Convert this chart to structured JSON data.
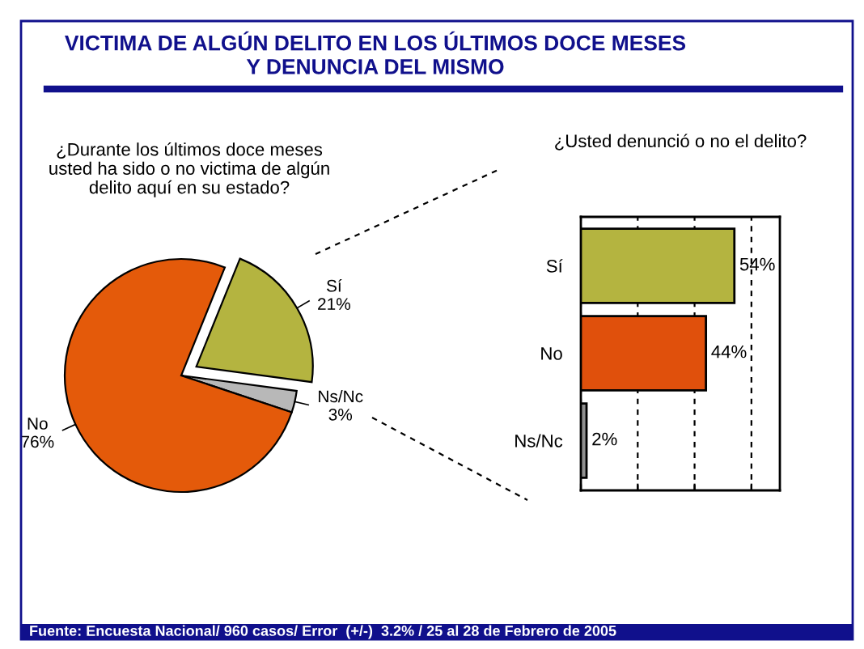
{
  "chart_data": [
    {
      "type": "pie",
      "title": "VICTIMA DE ALGÚN DELITO EN LOS ÚLTIMOS DOCE MESES\nY DENUNCIA DEL MISMO",
      "subtitle": "¿Durante los últimos doce meses\nusted ha sido o no victima de algún\ndelito aquí en su estado?",
      "categories": [
        "Sí",
        "Ns/Nc",
        "No"
      ],
      "values": [
        21,
        3,
        76
      ],
      "colors": [
        "#b4b440",
        "#b8b8b8",
        "#e45a0a"
      ],
      "value_labels": [
        "21%",
        "3%",
        "76%"
      ]
    },
    {
      "type": "bar",
      "orientation": "horizontal",
      "title": "¿Usted denunció o no el delito?",
      "categories": [
        "Sí",
        "No",
        "Ns/Nc"
      ],
      "values": [
        54,
        44,
        2
      ],
      "colors": [
        "#b4b440",
        "#e0500c",
        "#909090"
      ],
      "value_labels": [
        "54%",
        "44%",
        "2%"
      ],
      "xlim": [
        0,
        70
      ],
      "xticks": [
        {
          "value": 0,
          "label": null
        },
        {
          "value": 20,
          "label": null
        },
        {
          "value": 40,
          "label": null
        },
        {
          "value": 60,
          "label": null
        }
      ],
      "grid": "x",
      "tick_labels": "y",
      "annotations": [
        "Fuente: Encuesta Nacional/ 960 casos/ Error  (+/-)  3.2% / 25 al 28 de Febrero de 2005"
      ]
    }
  ]
}
